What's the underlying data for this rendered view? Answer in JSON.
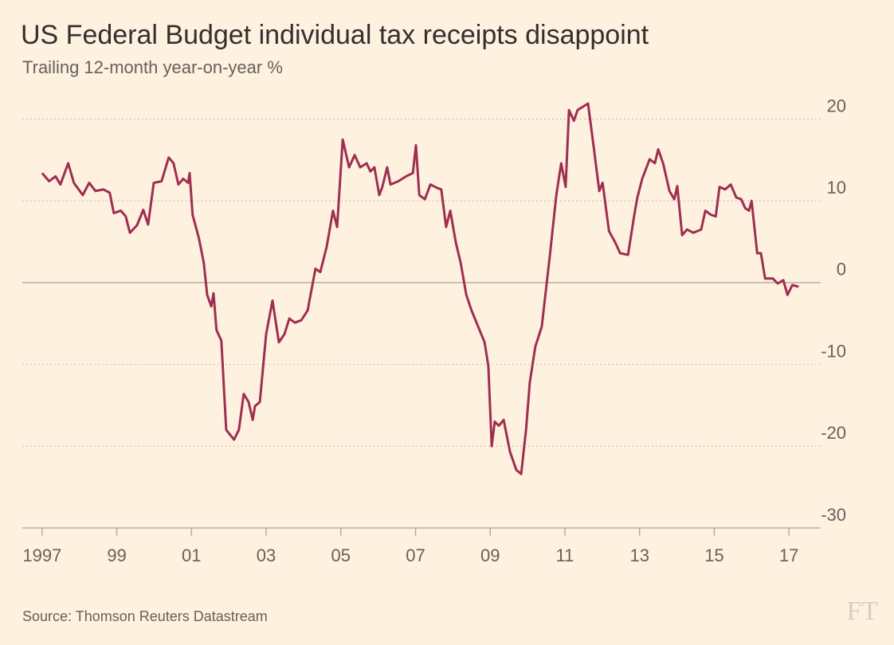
{
  "chart_data": {
    "type": "line",
    "title": "US Federal Budget individual tax receipts disappoint",
    "subtitle": "Trailing 12-month year-on-year %",
    "source": "Source: Thomson Reuters Datastream",
    "logo": "FT",
    "x": [
      1997.0,
      1997.19,
      1997.36,
      1997.49,
      1997.7,
      1997.85,
      1998.09,
      1998.26,
      1998.43,
      1998.64,
      1998.81,
      1998.92,
      1999.11,
      1999.24,
      1999.35,
      1999.54,
      1999.71,
      1999.84,
      1999.99,
      2000.2,
      2000.39,
      2000.52,
      2000.65,
      2000.78,
      2000.91,
      2000.95,
      2001.03,
      2001.2,
      2001.33,
      2001.42,
      2001.53,
      2001.59,
      2001.67,
      2001.8,
      2001.93,
      2002.14,
      2002.27,
      2002.4,
      2002.53,
      2002.64,
      2002.7,
      2002.83,
      2003.0,
      2003.17,
      2003.34,
      2003.49,
      2003.62,
      2003.77,
      2003.94,
      2004.11,
      2004.32,
      2004.45,
      2004.62,
      2004.79,
      2004.9,
      2005.05,
      2005.22,
      2005.37,
      2005.52,
      2005.69,
      2005.79,
      2005.9,
      2006.03,
      2006.11,
      2006.24,
      2006.33,
      2006.54,
      2006.75,
      2006.93,
      2007.01,
      2007.1,
      2007.25,
      2007.4,
      2007.57,
      2007.69,
      2007.82,
      2007.93,
      2008.08,
      2008.21,
      2008.36,
      2008.5,
      2008.68,
      2008.85,
      2008.95,
      2009.04,
      2009.12,
      2009.23,
      2009.36,
      2009.53,
      2009.7,
      2009.83,
      2009.96,
      2010.06,
      2010.21,
      2010.38,
      2010.6,
      2010.77,
      2010.9,
      2011.02,
      2011.11,
      2011.24,
      2011.34,
      2011.62,
      2011.77,
      2011.92,
      2012.01,
      2012.18,
      2012.35,
      2012.48,
      2012.69,
      2012.86,
      2012.94,
      2013.07,
      2013.27,
      2013.41,
      2013.5,
      2013.63,
      2013.8,
      2013.93,
      2014.01,
      2014.14,
      2014.27,
      2014.44,
      2014.65,
      2014.76,
      2014.91,
      2015.04,
      2015.14,
      2015.29,
      2015.44,
      2015.59,
      2015.72,
      2015.83,
      2015.93,
      2016.0,
      2016.15,
      2016.25,
      2016.36,
      2016.57,
      2016.7,
      2016.85,
      2016.96,
      2017.09,
      2017.26
    ],
    "series": [
      {
        "color": "#9e2f50",
        "values": [
          13.4,
          12.4,
          13,
          12,
          14.6,
          12.2,
          10.7,
          12.2,
          11.2,
          11.4,
          11,
          8.5,
          8.8,
          8.1,
          6.1,
          7,
          8.9,
          7.1,
          12.2,
          12.4,
          15.3,
          14.6,
          12,
          12.7,
          12.2,
          13.4,
          8.3,
          5.4,
          2.4,
          -1.5,
          -2.9,
          -1.3,
          -5.8,
          -7.1,
          -18,
          -19.2,
          -18,
          -13.6,
          -14.6,
          -16.8,
          -15.1,
          -14.6,
          -6.3,
          -2.2,
          -7.3,
          -6.3,
          -4.4,
          -4.9,
          -4.6,
          -3.4,
          1.7,
          1.3,
          4.4,
          8.8,
          6.8,
          17.5,
          14.1,
          15.6,
          14.1,
          14.6,
          13.6,
          14.1,
          10.7,
          11.7,
          14.1,
          12,
          12.4,
          13,
          13.4,
          16.8,
          10.7,
          10.2,
          12,
          11.6,
          11.4,
          6.8,
          8.8,
          4.9,
          2.4,
          -1.5,
          -3.4,
          -5.4,
          -7.3,
          -10.2,
          -20,
          -17,
          -17.5,
          -16.8,
          -20.7,
          -22.9,
          -23.4,
          -18,
          -12.2,
          -7.8,
          -5.4,
          3.4,
          10.7,
          14.6,
          11.7,
          21.1,
          19.8,
          21.1,
          21.9,
          16.6,
          11.2,
          12.2,
          6.3,
          4.9,
          3.6,
          3.4,
          8.3,
          10.4,
          12.7,
          15.1,
          14.6,
          16.3,
          14.6,
          11.2,
          10.2,
          11.8,
          5.8,
          6.5,
          6.1,
          6.5,
          8.8,
          8.3,
          8.1,
          11.7,
          11.4,
          12,
          10.4,
          10.2,
          9.1,
          8.8,
          10,
          3.6,
          3.6,
          0.5,
          0.5,
          -0.1,
          0.3,
          -1.5,
          -0.3,
          -0.5
        ]
      }
    ],
    "xlim": [
      1996.47,
      2017.85
    ],
    "xticks": [
      {
        "value": 1997,
        "label": "1997"
      },
      {
        "value": 1999,
        "label": "99"
      },
      {
        "value": 2001,
        "label": "01"
      },
      {
        "value": 2003,
        "label": "03"
      },
      {
        "value": 2005,
        "label": "05"
      },
      {
        "value": 2007,
        "label": "07"
      },
      {
        "value": 2009,
        "label": "09"
      },
      {
        "value": 2011,
        "label": "11"
      },
      {
        "value": 2013,
        "label": "13"
      },
      {
        "value": 2015,
        "label": "15"
      },
      {
        "value": 2017,
        "label": "17"
      }
    ],
    "ylim": [
      -30,
      22
    ],
    "yticks": [
      -30,
      -20,
      -10,
      0,
      10,
      20
    ],
    "grid": true
  }
}
